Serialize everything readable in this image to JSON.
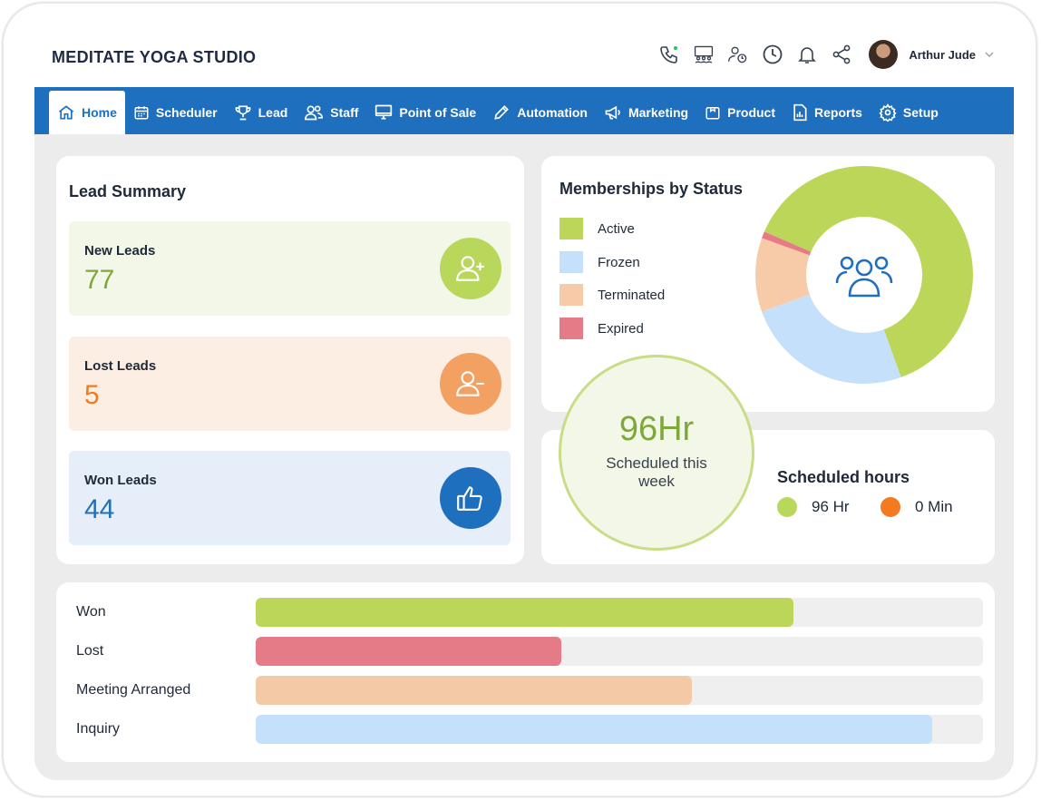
{
  "app": {
    "title": "MEDITATE YOGA STUDIO"
  },
  "user": {
    "name": "Arthur Jude"
  },
  "nav": {
    "items": [
      {
        "label": "Home",
        "icon": "home-icon",
        "active": true
      },
      {
        "label": "Scheduler",
        "icon": "calendar-icon"
      },
      {
        "label": "Lead",
        "icon": "trophy-icon"
      },
      {
        "label": "Staff",
        "icon": "staff-icon"
      },
      {
        "label": "Point of Sale",
        "icon": "monitor-icon"
      },
      {
        "label": "Automation",
        "icon": "pencil-icon"
      },
      {
        "label": "Marketing",
        "icon": "megaphone-icon"
      },
      {
        "label": "Product",
        "icon": "product-icon"
      },
      {
        "label": "Reports",
        "icon": "report-icon"
      },
      {
        "label": "Setup",
        "icon": "gear-icon"
      }
    ]
  },
  "lead_summary": {
    "title": "Lead Summary",
    "new": {
      "label": "New Leads",
      "value": "77",
      "icon": "user-plus-icon"
    },
    "lost": {
      "label": "Lost Leads",
      "value": "5",
      "icon": "user-minus-icon"
    },
    "won": {
      "label": "Won Leads",
      "value": "44",
      "icon": "thumbs-up-icon"
    }
  },
  "memberships": {
    "title": "Memberships by Status",
    "legend": [
      {
        "label": "Active",
        "color": "#bcd65a"
      },
      {
        "label": "Frozen",
        "color": "#c5e0fa"
      },
      {
        "label": "Terminated",
        "color": "#f8cba8"
      },
      {
        "label": "Expired",
        "color": "#e57b86"
      }
    ]
  },
  "chart_data": [
    {
      "type": "pie",
      "title": "Memberships by Status",
      "categories": [
        "Active",
        "Frozen",
        "Terminated",
        "Expired"
      ],
      "values": [
        63,
        25,
        11,
        1
      ],
      "colors": [
        "#bcd65a",
        "#c5e0fa",
        "#f8cba8",
        "#e57b86"
      ]
    },
    {
      "type": "bar",
      "orientation": "horizontal",
      "categories": [
        "Won",
        "Lost",
        "Meeting Arranged",
        "Inquiry"
      ],
      "values": [
        74,
        42,
        60,
        93
      ],
      "xlim": [
        0,
        100
      ],
      "colors": [
        "#bcd65a",
        "#e57b86",
        "#f3c9a6",
        "#c5e0fa"
      ]
    }
  ],
  "hours": {
    "big": "96Hr",
    "sub": "Scheduled this week",
    "title": "Scheduled hours",
    "legend": [
      {
        "label": "96 Hr",
        "color": "#b9d75b"
      },
      {
        "label": "0 Min",
        "color": "#f47a1f"
      }
    ]
  }
}
